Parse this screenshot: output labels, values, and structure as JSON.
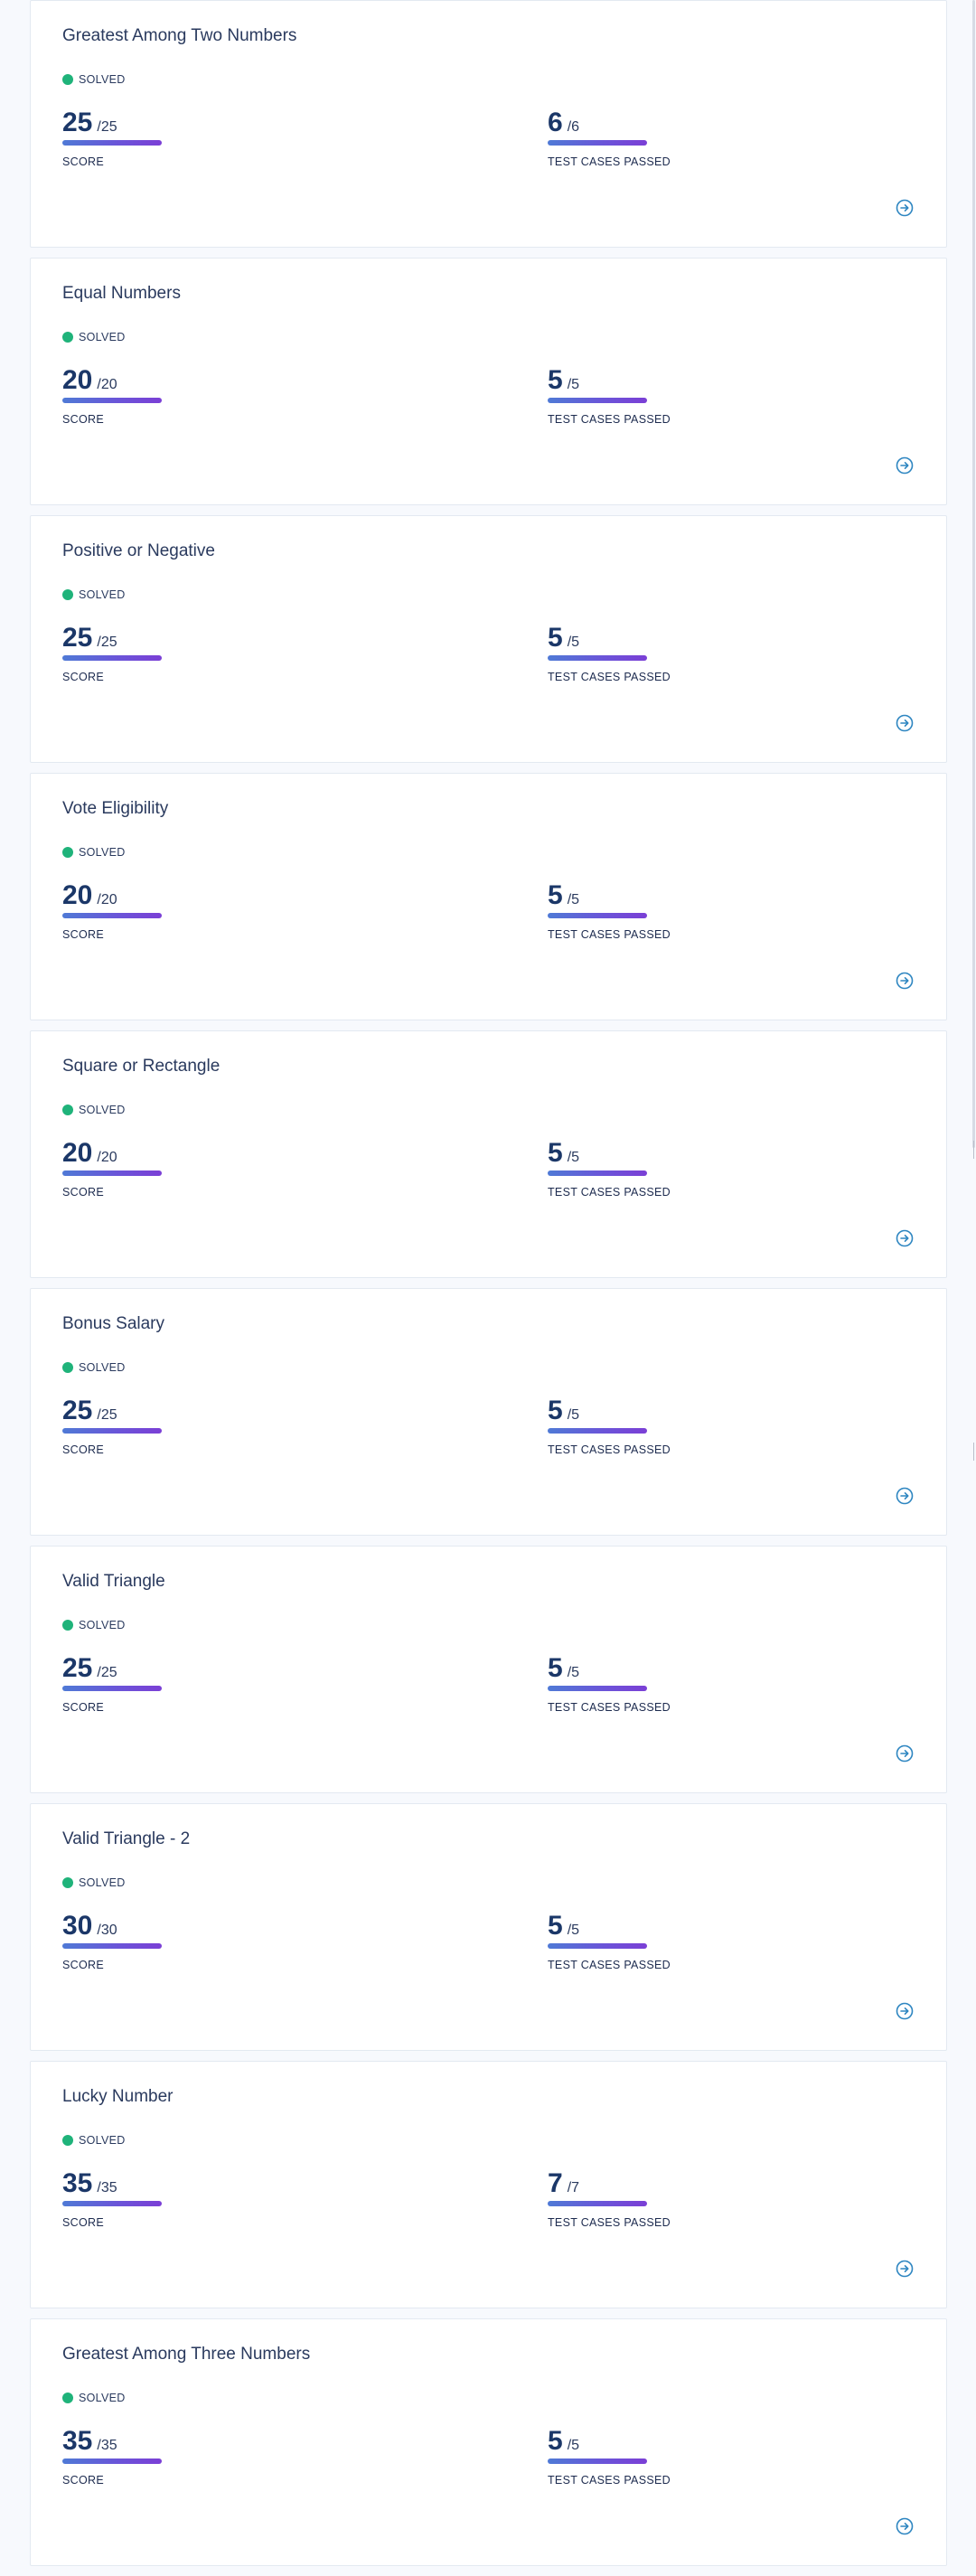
{
  "cards": [
    {
      "title": "Greatest Among Two Numbers",
      "status": "SOLVED",
      "score": "25",
      "score_total": "/25",
      "score_label": "SCORE",
      "passed": "6",
      "passed_total": "/6",
      "passed_label": "TEST CASES PASSED",
      "score_fraction": 1.0,
      "passed_fraction": 1.0
    },
    {
      "title": "Equal Numbers",
      "status": "SOLVED",
      "score": "20",
      "score_total": "/20",
      "score_label": "SCORE",
      "passed": "5",
      "passed_total": "/5",
      "passed_label": "TEST CASES PASSED",
      "score_fraction": 1.0,
      "passed_fraction": 1.0
    },
    {
      "title": "Positive or Negative",
      "status": "SOLVED",
      "score": "25",
      "score_total": "/25",
      "score_label": "SCORE",
      "passed": "5",
      "passed_total": "/5",
      "passed_label": "TEST CASES PASSED",
      "score_fraction": 1.0,
      "passed_fraction": 1.0
    },
    {
      "title": "Vote Eligibility",
      "status": "SOLVED",
      "score": "20",
      "score_total": "/20",
      "score_label": "SCORE",
      "passed": "5",
      "passed_total": "/5",
      "passed_label": "TEST CASES PASSED",
      "score_fraction": 1.0,
      "passed_fraction": 1.0
    },
    {
      "title": "Square or Rectangle",
      "status": "SOLVED",
      "score": "20",
      "score_total": "/20",
      "score_label": "SCORE",
      "passed": "5",
      "passed_total": "/5",
      "passed_label": "TEST CASES PASSED",
      "score_fraction": 1.0,
      "passed_fraction": 1.0
    },
    {
      "title": "Bonus Salary",
      "status": "SOLVED",
      "score": "25",
      "score_total": "/25",
      "score_label": "SCORE",
      "passed": "5",
      "passed_total": "/5",
      "passed_label": "TEST CASES PASSED",
      "score_fraction": 1.0,
      "passed_fraction": 1.0
    },
    {
      "title": "Valid Triangle",
      "status": "SOLVED",
      "score": "25",
      "score_total": "/25",
      "score_label": "SCORE",
      "passed": "5",
      "passed_total": "/5",
      "passed_label": "TEST CASES PASSED",
      "score_fraction": 1.0,
      "passed_fraction": 1.0
    },
    {
      "title": "Valid Triangle - 2",
      "status": "SOLVED",
      "score": "30",
      "score_total": "/30",
      "score_label": "SCORE",
      "passed": "5",
      "passed_total": "/5",
      "passed_label": "TEST CASES PASSED",
      "score_fraction": 1.0,
      "passed_fraction": 1.0
    },
    {
      "title": "Lucky Number",
      "status": "SOLVED",
      "score": "35",
      "score_total": "/35",
      "score_label": "SCORE",
      "passed": "7",
      "passed_total": "/7",
      "passed_label": "TEST CASES PASSED",
      "score_fraction": 1.0,
      "passed_fraction": 1.0
    },
    {
      "title": "Greatest Among Three Numbers",
      "status": "SOLVED",
      "score": "35",
      "score_total": "/35",
      "score_label": "SCORE",
      "passed": "5",
      "passed_total": "/5",
      "passed_label": "TEST CASES PASSED",
      "score_fraction": 1.0,
      "passed_fraction": 1.0
    }
  ],
  "icons": {
    "status": "solved-dot-icon",
    "open": "arrow-circle-right-icon"
  },
  "colors": {
    "solved": "#1fb37a",
    "bar_start": "#4f7ad6",
    "bar_end": "#7b3fd6",
    "accent_icon": "#2e86c1",
    "value_text": "#1b3768"
  }
}
